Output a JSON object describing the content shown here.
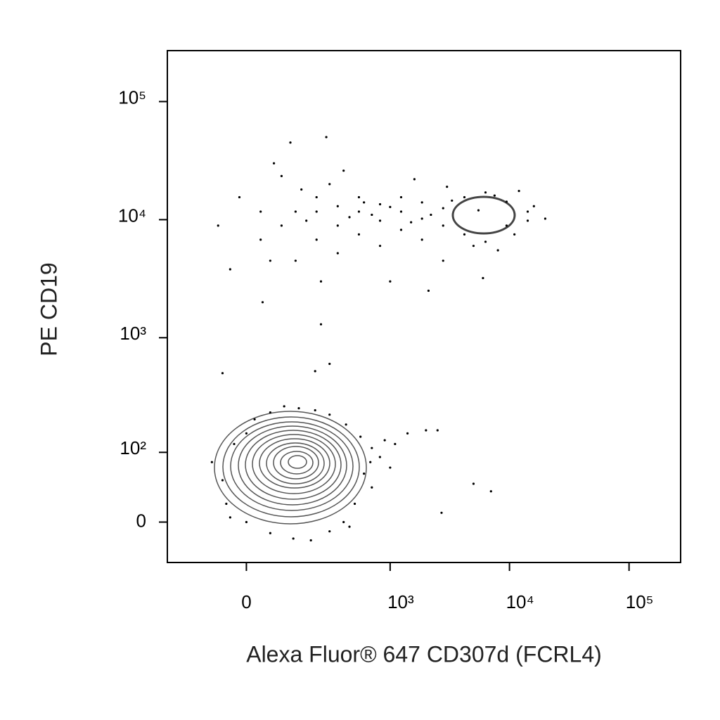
{
  "chart_data": {
    "type": "scatter",
    "x_label": "Alexa Fluor® 647 CD307d (FCRL4)",
    "y_label": "PE CD19",
    "color": "#000000",
    "xlim": [
      -275,
      270000
    ],
    "ylim": [
      -48,
      270000
    ],
    "xticks": [
      0,
      {
        "value": 1000,
        "label": "10³"
      },
      {
        "value": 10000,
        "label": "10⁴"
      },
      {
        "value": 100000,
        "label": "10⁵"
      }
    ],
    "yticks": [
      0,
      {
        "value": 100,
        "label": "10²"
      },
      {
        "value": 1000,
        "label": "10³"
      },
      {
        "value": 10000,
        "label": "10⁴"
      },
      {
        "value": 100000,
        "label": "10⁵"
      }
    ],
    "x": [
      -72,
      -17,
      35,
      35,
      92,
      92,
      138,
      138,
      227,
      227,
      227,
      355,
      355,
      355,
      543,
      543,
      543,
      822,
      822,
      822,
      1237,
      1237,
      1237,
      1852,
      1852,
      1852,
      2785,
      2785,
      2785,
      4196,
      4196,
      6300,
      6300,
      9450,
      9450,
      14200,
      14200,
      19900,
      60,
      160,
      300,
      450,
      700,
      1000,
      1500,
      2200,
      3300,
      5000,
      7500,
      11000,
      16000,
      250,
      2100,
      6000,
      120,
      280,
      70,
      400,
      1600,
      -40,
      40,
      1000,
      3000,
      8000,
      12000,
      600,
      180,
      5500,
      -90,
      -60,
      -50,
      -30,
      0,
      20,
      60,
      100,
      150,
      220,
      300,
      420,
      560,
      700,
      820,
      1100,
      1400,
      600,
      500,
      400,
      300,
      200,
      130,
      60,
      0,
      -40,
      450,
      700,
      1000,
      2000,
      2500,
      2700,
      5000,
      7000,
      300,
      220,
      250,
      -60,
      680,
      900
    ],
    "values": [
      8900,
      15500,
      11700,
      6770,
      23400,
      8900,
      11700,
      4490,
      15500,
      6770,
      11700,
      8900,
      13000,
      5200,
      11700,
      15500,
      7500,
      9800,
      13500,
      6000,
      11700,
      15500,
      8200,
      10200,
      14000,
      6770,
      12500,
      8900,
      4490,
      15500,
      7500,
      17000,
      6500,
      14200,
      8900,
      11700,
      9800,
      10200,
      4490,
      18000,
      20000,
      10500,
      11000,
      12800,
      9500,
      11000,
      14500,
      6000,
      16000,
      7500,
      13000,
      3000,
      2500,
      3200,
      45000,
      50000,
      30000,
      26000,
      22000,
      3800,
      2000,
      3000,
      19000,
      5500,
      17500,
      14000,
      9800,
      12000,
      80,
      50,
      20,
      120,
      150,
      200,
      230,
      260,
      250,
      240,
      220,
      180,
      140,
      110,
      90,
      120,
      150,
      60,
      20,
      0,
      -10,
      -20,
      -18,
      -12,
      0,
      5,
      -5,
      40,
      70,
      160,
      160,
      10,
      45,
      35,
      600,
      520,
      1300,
      500,
      80,
      130
    ]
  }
}
